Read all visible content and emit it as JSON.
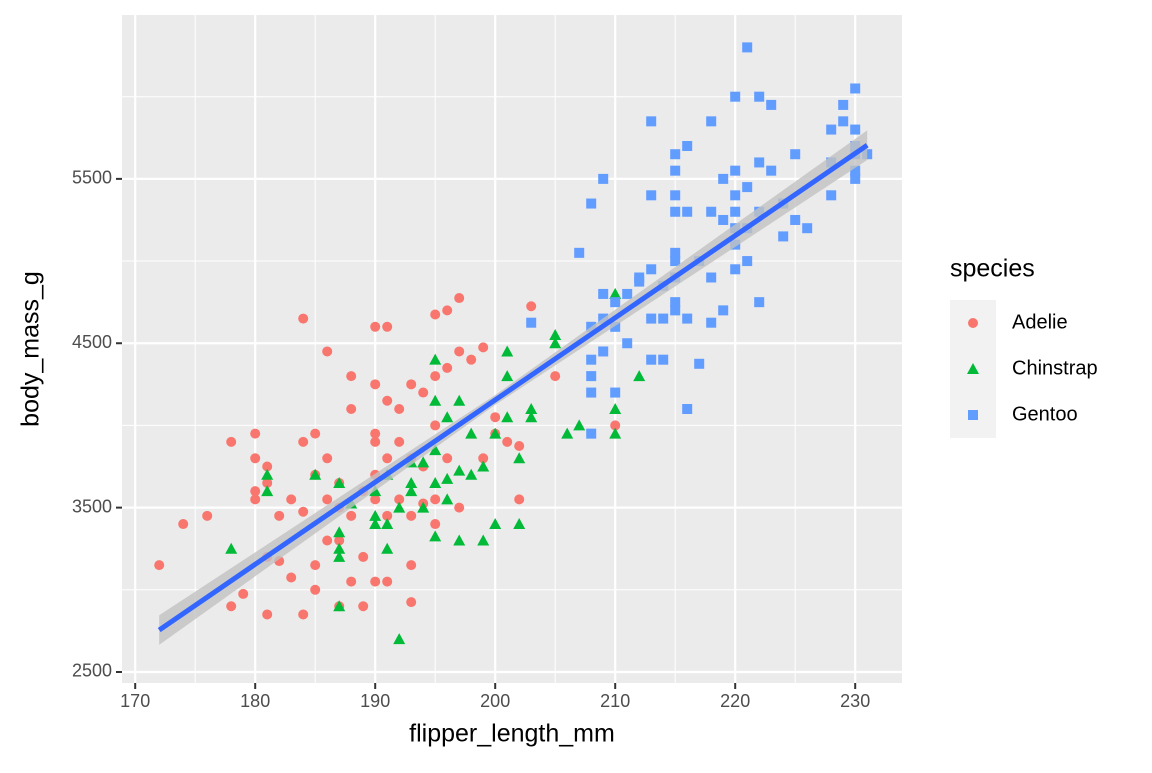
{
  "chart_data": {
    "type": "scatter",
    "x_label": "flipper_length_mm",
    "y_label": "body_mass_g",
    "legend_title": "species",
    "legend_position": "right",
    "xlim": [
      168.9,
      233.9
    ],
    "ylim": [
      2433,
      6497
    ],
    "xticks": [
      170,
      180,
      190,
      200,
      210,
      220,
      230
    ],
    "yticks": [
      2500,
      3500,
      4500,
      5500
    ],
    "minor_xticks": [
      175,
      185,
      195,
      205,
      215,
      225
    ],
    "minor_yticks": [
      3000,
      4000,
      5000,
      6000
    ],
    "grid": true,
    "trend": {
      "color": "#3366FF",
      "band_color": "#C2C2C2",
      "x": [
        172,
        200,
        231
      ],
      "y": [
        2755,
        4155,
        5705
      ],
      "ymin": [
        2665,
        4125,
        5615
      ],
      "ymax": [
        2845,
        4185,
        5795
      ]
    },
    "series": [
      {
        "name": "Adelie",
        "color": "#F8766D",
        "shape": "circle",
        "x": [
          172,
          174,
          176,
          178,
          178,
          179,
          180,
          180,
          180,
          180,
          181,
          181,
          181,
          181,
          182,
          182,
          183,
          183,
          184,
          184,
          184,
          184,
          185,
          185,
          185,
          185,
          186,
          186,
          186,
          186,
          187,
          187,
          187,
          187,
          188,
          188,
          188,
          188,
          189,
          189,
          189,
          190,
          190,
          190,
          190,
          190,
          190,
          190,
          191,
          191,
          191,
          191,
          191,
          192,
          192,
          192,
          193,
          193,
          193,
          193,
          193,
          194,
          194,
          194,
          195,
          195,
          195,
          195,
          195,
          196,
          196,
          196,
          197,
          197,
          197,
          198,
          199,
          199,
          200,
          200,
          201,
          202,
          202,
          203,
          205,
          210
        ],
        "y": [
          3150,
          3400,
          3450,
          3900,
          2900,
          2975,
          3950,
          3800,
          3600,
          3550,
          3750,
          3650,
          2850,
          3200,
          3175,
          3450,
          3550,
          3075,
          4650,
          3900,
          3475,
          2850,
          3950,
          3700,
          3150,
          3000,
          4450,
          3800,
          3550,
          3300,
          3650,
          3500,
          3300,
          2900,
          4300,
          4100,
          3050,
          3450,
          3600,
          3200,
          2900,
          4600,
          4250,
          3950,
          3900,
          3700,
          3550,
          3050,
          4600,
          4150,
          3800,
          3450,
          3050,
          4100,
          3900,
          3550,
          4250,
          3800,
          3450,
          3150,
          2925,
          4200,
          3750,
          3525,
          4675,
          4300,
          4000,
          3550,
          3400,
          4700,
          4350,
          3800,
          4775,
          4450,
          3500,
          4400,
          4475,
          3800,
          4050,
          3950,
          3900,
          3875,
          3550,
          4725,
          4300,
          4000
        ]
      },
      {
        "name": "Chinstrap",
        "color": "#00BA38",
        "shape": "triangle",
        "x": [
          178,
          181,
          181,
          185,
          187,
          187,
          187,
          187,
          187,
          188,
          190,
          190,
          190,
          191,
          191,
          191,
          192,
          192,
          193,
          193,
          193,
          194,
          194,
          195,
          195,
          195,
          195,
          195,
          196,
          196,
          196,
          197,
          197,
          197,
          198,
          198,
          199,
          199,
          200,
          200,
          201,
          201,
          201,
          202,
          202,
          203,
          203,
          205,
          205,
          206,
          207,
          210,
          210,
          210,
          212
        ],
        "y": [
          3250,
          3700,
          3600,
          3700,
          3650,
          3350,
          3250,
          3200,
          2900,
          3525,
          3450,
          3400,
          3600,
          3400,
          3250,
          3700,
          2700,
          3500,
          3650,
          3600,
          3775,
          3775,
          3500,
          4400,
          4150,
          3325,
          3650,
          3850,
          3675,
          3550,
          4050,
          4150,
          3725,
          3300,
          3950,
          3700,
          3750,
          3300,
          3400,
          3950,
          4450,
          4300,
          4050,
          3400,
          3800,
          4100,
          4050,
          4550,
          4500,
          3950,
          4000,
          4800,
          4100,
          3950,
          4300
        ]
      },
      {
        "name": "Gentoo",
        "color": "#619CFF",
        "shape": "square",
        "x": [
          203,
          207,
          208,
          208,
          208,
          208,
          208,
          208,
          209,
          209,
          209,
          209,
          210,
          210,
          210,
          211,
          211,
          212,
          212,
          213,
          213,
          213,
          213,
          213,
          214,
          214,
          214,
          215,
          215,
          215,
          215,
          215,
          215,
          215,
          215,
          215,
          216,
          216,
          216,
          216,
          217,
          217,
          218,
          218,
          218,
          218,
          219,
          219,
          219,
          220,
          220,
          220,
          220,
          220,
          220,
          220,
          221,
          221,
          221,
          221,
          222,
          222,
          222,
          222,
          223,
          223,
          224,
          224,
          225,
          225,
          226,
          228,
          228,
          228,
          229,
          229,
          230,
          230,
          230,
          230,
          230,
          230,
          231
        ],
        "y": [
          4625,
          5050,
          5350,
          4600,
          4400,
          4300,
          4200,
          3950,
          5500,
          4800,
          4650,
          4450,
          4750,
          4600,
          4200,
          4500,
          4800,
          4900,
          4875,
          5850,
          5400,
          4950,
          4650,
          4400,
          4850,
          4650,
          4400,
          5650,
          5550,
          5400,
          5300,
          5050,
          5000,
          4900,
          4750,
          4700,
          5700,
          5300,
          4650,
          4100,
          5000,
          4375,
          5850,
          5300,
          4900,
          4625,
          5500,
          5250,
          4700,
          6000,
          5550,
          5400,
          5300,
          5200,
          5100,
          4950,
          6300,
          5450,
          5200,
          5000,
          6000,
          5600,
          5300,
          4750,
          5950,
          5550,
          5350,
          5150,
          5650,
          5250,
          5200,
          5800,
          5400,
          5600,
          5950,
          5850,
          6050,
          5800,
          5700,
          5650,
          5500,
          5550,
          5650
        ]
      }
    ]
  }
}
